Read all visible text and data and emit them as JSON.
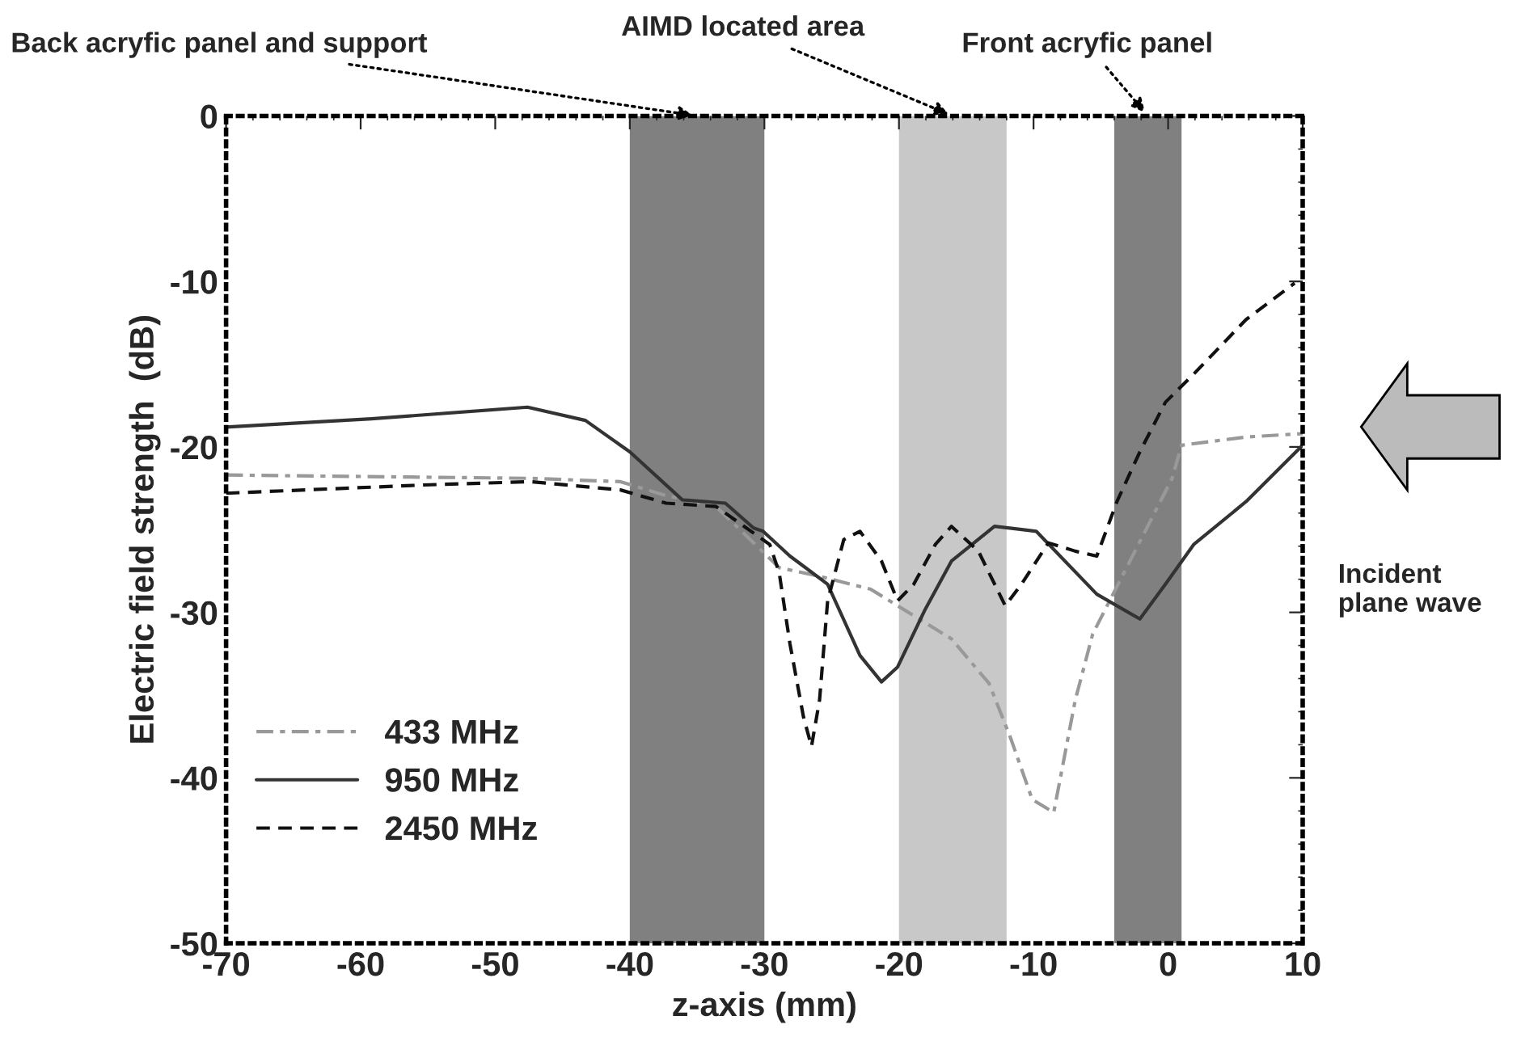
{
  "chart_data": {
    "type": "line",
    "xlabel": "z-axis (mm)",
    "ylabel": "Electric field strength  (dB)",
    "xlim": [
      -70,
      10
    ],
    "xticks": [
      -70,
      -60,
      -50,
      -40,
      -30,
      -20,
      -10,
      0,
      10
    ],
    "ylim": [
      -50,
      0
    ],
    "yticks": [
      -50,
      -40,
      -30,
      -20,
      -10,
      0
    ],
    "grid": false,
    "legend": "bottom left",
    "series": [
      {
        "name": "433 MHz",
        "color": "#999999",
        "line_style": "dotted",
        "x": [
          -70,
          -47.4,
          -40.7,
          -37.5,
          -33.6,
          -28.9,
          -26.0,
          -22.1,
          -20.1,
          -16.1,
          -13.3,
          -11.7,
          -10.1,
          -8.5,
          -6.9,
          -5.6,
          0.3,
          1,
          5.8,
          10
        ],
        "values": [
          -21.7,
          -21.9,
          -22.1,
          -22.9,
          -23.6,
          -27.3,
          -27.8,
          -28.6,
          -29.6,
          -31.6,
          -34.3,
          -37.6,
          -41.3,
          -42.1,
          -35.3,
          -31.3,
          -21.9,
          -19.9,
          -19.4,
          -19.2
        ]
      },
      {
        "name": "950 MHz",
        "color": "#333333",
        "line_style": "solid",
        "x": [
          -70,
          -59.2,
          -47.6,
          -43.3,
          -40,
          -36.1,
          -32.9,
          -30.8,
          -30.1,
          -28.1,
          -25.3,
          -22.9,
          -21.3,
          -20.1,
          -18.1,
          -16.1,
          -12.9,
          -9.8,
          -5.3,
          -2.1,
          -0.2,
          1.9,
          5.8,
          10
        ],
        "values": [
          -18.8,
          -18.3,
          -17.6,
          -18.4,
          -20.3,
          -23.2,
          -23.4,
          -24.9,
          -25.1,
          -26.6,
          -28.3,
          -32.6,
          -34.2,
          -33.3,
          -29.9,
          -26.9,
          -24.8,
          -25.1,
          -28.9,
          -30.4,
          -28.3,
          -25.9,
          -23.3,
          -19.9
        ]
      },
      {
        "name": "2450 MHz",
        "color": "#111111",
        "line_style": "dashed",
        "x": [
          -70,
          -55.3,
          -47.4,
          -40.7,
          -37.3,
          -33.6,
          -29.6,
          -28.9,
          -28.1,
          -27.1,
          -26.5,
          -25.9,
          -25.3,
          -24.1,
          -22.9,
          -21.3,
          -20.1,
          -18.9,
          -17.3,
          -16.1,
          -14.1,
          -12.1,
          -10.9,
          -8.9,
          -6.9,
          -5.3,
          -3.8,
          -2.1,
          -0.2,
          1.9,
          5.8,
          9.4
        ],
        "values": [
          -22.8,
          -22.3,
          -22.1,
          -22.6,
          -23.4,
          -23.6,
          -25.9,
          -27.6,
          -31.9,
          -36.3,
          -38.1,
          -35.3,
          -29.3,
          -25.6,
          -25.1,
          -26.9,
          -29.3,
          -28.3,
          -25.9,
          -24.8,
          -26.3,
          -29.6,
          -28.3,
          -25.8,
          -26.3,
          -26.6,
          -23.3,
          -20.3,
          -17.3,
          -15.6,
          -12.3,
          -10.1
        ]
      }
    ],
    "bands": [
      {
        "axis": "x",
        "from": -40,
        "to": -30,
        "label": "Back acryfic panel and support",
        "color": "#808080"
      },
      {
        "axis": "x",
        "from": -20,
        "to": -12,
        "label": "AIMD located area",
        "color": "#c8c8c8"
      },
      {
        "axis": "x",
        "from": -4,
        "to": 1,
        "label": "Front acryfic panel",
        "color": "#808080"
      }
    ],
    "annotations": [
      "Incident\nplane wave"
    ]
  }
}
